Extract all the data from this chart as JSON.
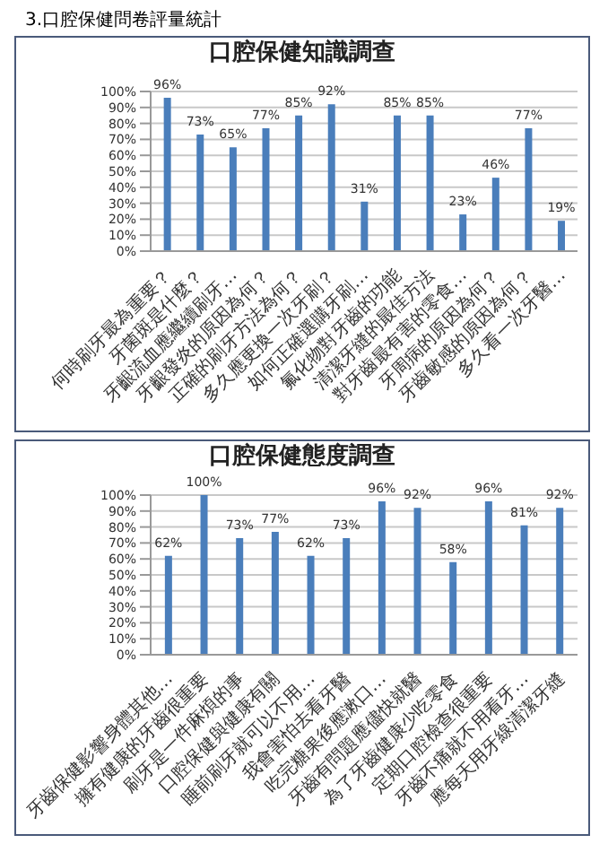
{
  "chart_data": [
    {
      "type": "bar",
      "title": "口腔保健知識調查",
      "annotations": [
        "3.口腔保健問卷評量統計"
      ],
      "categories": [
        "何時刷牙最為重要？",
        "牙菌斑是什麼？",
        "牙齦流血應繼續刷牙…",
        "牙齦發炎的原因為何？",
        "正確的刷牙方法為何？",
        "多久應更換一次牙刷？",
        "如何正確選購牙刷…",
        "氟化物對牙齒的功能",
        "清潔牙縫的最佳方法",
        "對牙齒最有害的零食…",
        "牙周病的原因為何？",
        "牙齒敏感的原因為何？",
        "多久看一次牙醫…"
      ],
      "values": [
        96,
        73,
        65,
        77,
        85,
        92,
        31,
        85,
        85,
        23,
        46,
        77,
        19
      ],
      "value_labels": [
        "96%",
        "73%",
        "65%",
        "77%",
        "85%",
        "92%",
        "31%",
        "85%",
        "85%",
        "23%",
        "46%",
        "77%",
        "19%"
      ],
      "color": "#4a7ebb",
      "ylim": [
        0,
        100
      ],
      "yticks": [
        {
          "value": 0,
          "label": "0%"
        },
        {
          "value": 10,
          "label": "10%"
        },
        {
          "value": 20,
          "label": "20%"
        },
        {
          "value": 30,
          "label": "30%"
        },
        {
          "value": 40,
          "label": "40%"
        },
        {
          "value": 50,
          "label": "50%"
        },
        {
          "value": 60,
          "label": "60%"
        },
        {
          "value": 70,
          "label": "70%"
        },
        {
          "value": 80,
          "label": "80%"
        },
        {
          "value": 90,
          "label": "90%"
        },
        {
          "value": 100,
          "label": "100%"
        }
      ],
      "grid": "y"
    },
    {
      "type": "bar",
      "title": "口腔保健態度調查",
      "categories": [
        "牙齒保健影響身體其他…",
        "擁有健康的牙齒很重要",
        "刷牙是一件麻煩的事",
        "口腔保健與健康有關",
        "睡前刷牙就可以不用…",
        "我會害怕去看牙醫",
        "吃完糖果後應漱口…",
        "牙齒有問題應儘快就醫",
        "為了牙齒健康少吃零食",
        "定期口腔檢查很重要",
        "牙齒不痛就不用看牙…",
        "應每天用牙線清潔牙縫"
      ],
      "values": [
        62,
        100,
        73,
        77,
        62,
        73,
        96,
        92,
        58,
        96,
        81,
        92
      ],
      "value_labels": [
        "62%",
        "100%",
        "73%",
        "77%",
        "62%",
        "73%",
        "96%",
        "92%",
        "58%",
        "96%",
        "81%",
        "92%"
      ],
      "color": "#4a7ebb",
      "ylim": [
        0,
        100
      ],
      "yticks": [
        {
          "value": 0,
          "label": "0%"
        },
        {
          "value": 10,
          "label": "10%"
        },
        {
          "value": 20,
          "label": "20%"
        },
        {
          "value": 30,
          "label": "30%"
        },
        {
          "value": 40,
          "label": "40%"
        },
        {
          "value": 50,
          "label": "50%"
        },
        {
          "value": 60,
          "label": "60%"
        },
        {
          "value": 70,
          "label": "70%"
        },
        {
          "value": 80,
          "label": "80%"
        },
        {
          "value": 90,
          "label": "90%"
        },
        {
          "value": 100,
          "label": "100%"
        }
      ],
      "grid": "y"
    }
  ]
}
